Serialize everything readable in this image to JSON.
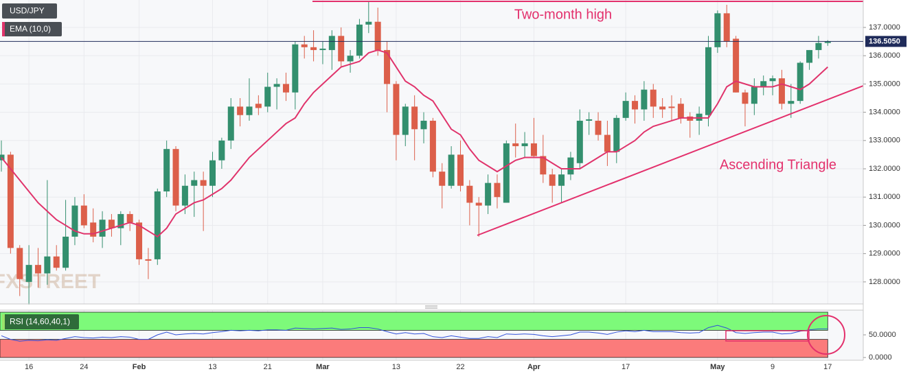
{
  "chart_data": {
    "type": "candlestick",
    "symbol": "USD/JPY",
    "categories": [
      null,
      null,
      null,
      "16",
      null,
      null,
      null,
      null,
      null,
      "24",
      null,
      null,
      null,
      null,
      null,
      "Feb",
      null,
      null,
      null,
      null,
      null,
      null,
      null,
      "13",
      null,
      null,
      null,
      null,
      null,
      "21",
      null,
      null,
      null,
      null,
      null,
      "Mar",
      null,
      null,
      null,
      null,
      null,
      null,
      null,
      "13",
      null,
      null,
      null,
      null,
      null,
      null,
      "22",
      null,
      null,
      null,
      null,
      null,
      null,
      null,
      "Apr",
      null,
      null,
      null,
      null,
      null,
      null,
      null,
      null,
      null,
      "17",
      null,
      null,
      null,
      null,
      null,
      null,
      null,
      null,
      null,
      "May",
      null,
      null,
      null,
      null,
      null,
      "9",
      null,
      null,
      null,
      null,
      null,
      "17"
    ],
    "open": [
      132.3,
      132.5,
      129.2,
      128.0,
      128.6,
      128.3,
      128.9,
      128.5,
      129.6,
      130.7,
      130.1,
      129.6,
      130.2,
      129.9,
      130.4,
      130.1,
      128.8,
      128.8,
      131.2,
      132.7,
      130.7,
      131.4,
      131.6,
      131.4,
      132.3,
      133.0,
      134.2,
      133.9,
      134.3,
      134.2,
      134.9,
      135.0,
      134.7,
      136.4,
      136.3,
      136.2,
      136.2,
      136.7,
      135.8,
      136.0,
      137.1,
      137.2,
      136.2,
      135.0,
      133.2,
      134.2,
      133.4,
      133.7,
      131.9,
      131.4,
      132.5,
      131.4,
      130.8,
      130.7,
      131.5,
      130.8,
      132.9,
      132.8,
      132.9,
      132.45,
      131.8,
      131.4,
      131.8,
      132.2,
      133.7,
      133.7,
      133.2,
      132.6,
      133.8,
      134.4,
      134.1,
      134.8,
      134.2,
      134.2,
      134.3,
      133.85,
      133.7,
      133.9,
      136.3,
      137.5,
      136.6,
      134.7,
      134.3,
      134.9,
      135.1,
      135.2,
      134.3,
      134.4,
      135.75,
      136.2,
      136.45
    ],
    "high": [
      133.0,
      132.6,
      129.3,
      129.3,
      129.2,
      131.6,
      129.3,
      130.9,
      131.0,
      131.1,
      130.6,
      130.5,
      130.4,
      130.5,
      130.5,
      130.2,
      129.2,
      131.3,
      133.0,
      132.8,
      131.8,
      131.9,
      131.9,
      132.6,
      133.1,
      134.5,
      134.5,
      135.2,
      134.6,
      135.4,
      135.2,
      135.4,
      136.5,
      136.7,
      136.9,
      136.5,
      136.9,
      137.0,
      136.2,
      137.3,
      137.9,
      137.7,
      136.5,
      135.1,
      134.3,
      134.6,
      134.0,
      133.8,
      132.2,
      132.8,
      133.0,
      131.6,
      131.0,
      131.8,
      131.8,
      133.0,
      133.6,
      133.3,
      133.8,
      133.2,
      132.0,
      132.0,
      132.6,
      134.1,
      134.0,
      134.0,
      133.7,
      133.9,
      134.7,
      134.6,
      135.1,
      135.0,
      134.5,
      134.6,
      134.5,
      134.0,
      134.2,
      136.7,
      137.6,
      137.8,
      136.7,
      134.8,
      135.2,
      135.3,
      135.3,
      135.5,
      135.0,
      135.8,
      136.2,
      136.7,
      136.55
    ],
    "low": [
      131.9,
      129.0,
      127.5,
      127.2,
      127.8,
      127.9,
      128.4,
      128.4,
      129.3,
      129.9,
      129.4,
      129.2,
      129.6,
      129.3,
      129.8,
      128.6,
      128.1,
      128.6,
      131.0,
      130.5,
      130.4,
      130.3,
      129.8,
      131.0,
      132.0,
      132.7,
      133.5,
      133.7,
      133.9,
      134.0,
      134.1,
      134.4,
      134.1,
      135.9,
      135.8,
      135.7,
      135.5,
      135.6,
      135.4,
      135.9,
      136.8,
      136.0,
      134.0,
      132.3,
      132.8,
      132.3,
      132.9,
      131.7,
      130.6,
      131.3,
      131.2,
      130.0,
      129.6,
      130.4,
      130.6,
      130.8,
      132.4,
      132.4,
      132.4,
      131.5,
      130.8,
      130.8,
      131.6,
      132.0,
      133.2,
      133.0,
      132.1,
      132.2,
      133.7,
      133.6,
      133.7,
      133.8,
      133.8,
      133.7,
      133.6,
      133.1,
      133.2,
      133.5,
      136.1,
      136.3,
      134.7,
      133.5,
      133.9,
      134.6,
      134.6,
      134.1,
      133.8,
      134.3,
      135.5,
      135.9,
      136.35
    ],
    "close": [
      132.5,
      129.2,
      128.1,
      128.6,
      128.3,
      128.9,
      128.5,
      129.6,
      130.7,
      130.0,
      129.6,
      130.2,
      129.9,
      130.4,
      130.1,
      128.8,
      128.75,
      131.2,
      132.7,
      130.7,
      131.4,
      131.6,
      131.4,
      132.3,
      133.0,
      134.2,
      133.9,
      134.2,
      134.15,
      134.9,
      135.0,
      134.7,
      136.4,
      136.3,
      136.2,
      136.25,
      136.7,
      135.8,
      136.0,
      137.1,
      137.2,
      136.2,
      135.0,
      133.2,
      134.2,
      133.4,
      133.7,
      131.9,
      131.4,
      132.5,
      131.4,
      130.8,
      130.7,
      131.5,
      131.0,
      132.9,
      132.8,
      132.9,
      132.45,
      131.8,
      131.4,
      131.8,
      132.4,
      133.7,
      133.75,
      133.2,
      132.6,
      133.8,
      134.4,
      134.1,
      134.8,
      134.2,
      134.1,
      134.15,
      133.8,
      133.7,
      133.95,
      136.3,
      137.5,
      136.5,
      134.7,
      134.3,
      134.9,
      135.1,
      135.2,
      134.3,
      134.4,
      135.75,
      136.2,
      136.45,
      136.505
    ],
    "close_label": "136.5050",
    "up_color": "#338f6e",
    "down_color": "#dc5f4a",
    "ylim": [
      127.22,
      137.97
    ],
    "yticks": [
      {
        "value": 128,
        "label": "128.0000"
      },
      {
        "value": 129,
        "label": "129.0000"
      },
      {
        "value": 130,
        "label": "130.0000"
      },
      {
        "value": 131,
        "label": "131.0000"
      },
      {
        "value": 132,
        "label": "132.0000"
      },
      {
        "value": 133,
        "label": "133.0000"
      },
      {
        "value": 134,
        "label": "134.0000"
      },
      {
        "value": 135,
        "label": "135.0000"
      },
      {
        "value": 136,
        "label": "136.0000"
      },
      {
        "value": 137,
        "label": "137.0000"
      }
    ],
    "grid": true,
    "series": [
      {
        "name": "EMA (10,0)",
        "color": "#e0336b",
        "values": [
          132.4,
          132.0,
          131.6,
          131.2,
          130.8,
          130.5,
          130.2,
          130.0,
          129.8,
          129.7,
          129.7,
          129.8,
          129.9,
          130.0,
          130.1,
          130.0,
          129.8,
          129.6,
          129.9,
          130.4,
          130.6,
          130.8,
          130.9,
          131.1,
          131.3,
          131.6,
          132.0,
          132.4,
          132.7,
          133.0,
          133.3,
          133.6,
          133.8,
          134.3,
          134.7,
          135.0,
          135.3,
          135.6,
          135.7,
          135.8,
          136.1,
          136.2,
          136.1,
          135.6,
          135.1,
          134.9,
          134.6,
          134.4,
          133.9,
          133.4,
          133.2,
          132.7,
          132.3,
          132.1,
          131.9,
          132.1,
          132.3,
          132.4,
          132.4,
          132.4,
          132.2,
          132.0,
          132.0,
          132.0,
          132.2,
          132.4,
          132.6,
          132.6,
          132.8,
          133.0,
          133.3,
          133.5,
          133.6,
          133.7,
          133.8,
          133.8,
          133.8,
          133.8,
          134.3,
          134.9,
          135.1,
          135.0,
          134.9,
          134.9,
          134.9,
          135.0,
          134.9,
          134.8,
          135.0,
          135.3,
          135.6
        ]
      }
    ],
    "annotations": [
      "Two-month high",
      "Ascending Triangle"
    ],
    "watermark": "FXSTREET",
    "rsi": {
      "name": "RSI (14,60,40,1)",
      "color": "#2f4fd8",
      "upper": 60,
      "lower": 40,
      "ylim": [
        -6,
        100
      ],
      "yticks": [
        {
          "value": 0,
          "label": "0.0000"
        },
        {
          "value": 50,
          "label": "50.0000"
        }
      ],
      "values": [
        48,
        40,
        36,
        38,
        37,
        39,
        38,
        42,
        46,
        44,
        43,
        45,
        44,
        46,
        45,
        40,
        40,
        50,
        56,
        50,
        52,
        53,
        52,
        55,
        57,
        60,
        59,
        60,
        59,
        61,
        61,
        60,
        65,
        64,
        63,
        64,
        65,
        62,
        63,
        66,
        66,
        63,
        57,
        52,
        55,
        52,
        53,
        46,
        44,
        48,
        45,
        42,
        42,
        46,
        44,
        52,
        51,
        52,
        51,
        48,
        46,
        48,
        50,
        56,
        56,
        54,
        51,
        56,
        59,
        57,
        60,
        57,
        57,
        57,
        55,
        54,
        55,
        66,
        71,
        65,
        55,
        53,
        55,
        56,
        56,
        52,
        53,
        58,
        61,
        63,
        63
      ]
    }
  }
}
